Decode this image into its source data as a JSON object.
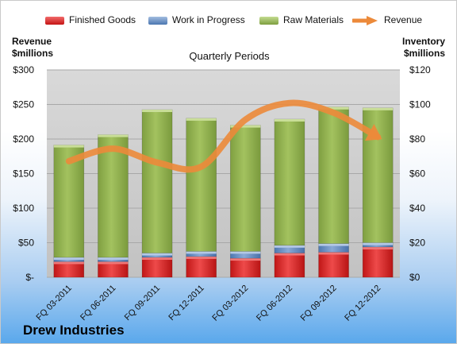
{
  "company": "Drew Industries",
  "chart_data": {
    "type": "bar",
    "stacked": true,
    "title": "Quarterly Periods",
    "categories": [
      "FQ 03-2011",
      "FQ 06-2011",
      "FQ 09-2011",
      "FQ 12-2011",
      "FQ 03-2012",
      "FQ 06-2012",
      "FQ 09-2012",
      "FQ 12-2012"
    ],
    "left_axis": {
      "label_line1": "Revenue",
      "label_line2": "$millions",
      "range": [
        0,
        300
      ],
      "ticks": [
        {
          "value": 0,
          "label": "$-"
        },
        {
          "value": 50,
          "label": "$50"
        },
        {
          "value": 100,
          "label": "$100"
        },
        {
          "value": 150,
          "label": "$150"
        },
        {
          "value": 200,
          "label": "$200"
        },
        {
          "value": 250,
          "label": "$250"
        },
        {
          "value": 300,
          "label": "$300"
        }
      ]
    },
    "right_axis": {
      "label_line1": "Inventory",
      "label_line2": "$millions",
      "range": [
        0,
        120
      ],
      "ticks": [
        {
          "value": 0,
          "label": "$0"
        },
        {
          "value": 20,
          "label": "$20"
        },
        {
          "value": 40,
          "label": "$40"
        },
        {
          "value": 60,
          "label": "$60"
        },
        {
          "value": 80,
          "label": "$80"
        },
        {
          "value": 100,
          "label": "$100"
        },
        {
          "value": 120,
          "label": "$120"
        }
      ]
    },
    "bar_series": [
      {
        "name": "Finished Goods",
        "color": "#d42020",
        "values": [
          9,
          9,
          11.5,
          12,
          11,
          14,
          14.5,
          17.5
        ]
      },
      {
        "name": "Work in Progress",
        "color": "#5b86bf",
        "values": [
          2.5,
          2.5,
          2.5,
          3,
          4,
          4.5,
          5,
          2.5
        ]
      },
      {
        "name": "Raw Materials",
        "color": "#8fb04f",
        "values": [
          65,
          71,
          83,
          77,
          73,
          73,
          79,
          78
        ]
      }
    ],
    "line_series": {
      "name": "Revenue",
      "color": "#ec8a3a",
      "values": [
        168,
        186,
        166,
        160,
        228,
        252,
        238,
        203
      ]
    },
    "legend_position": "top",
    "grid": true
  }
}
